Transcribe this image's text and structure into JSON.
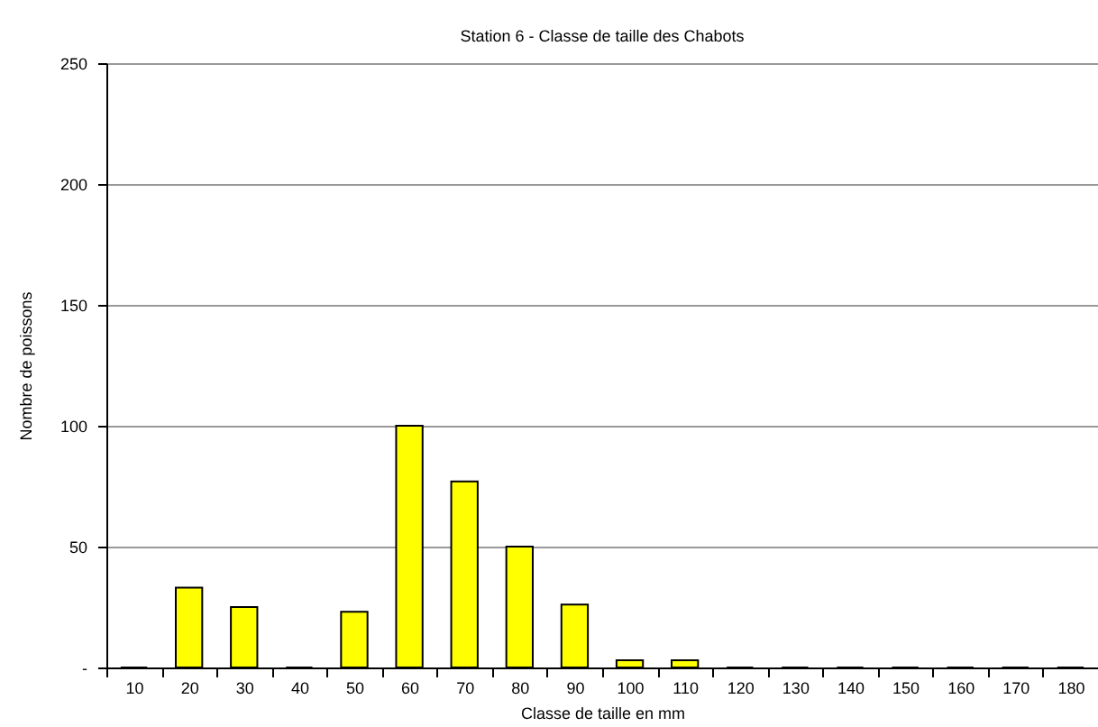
{
  "chart_data": {
    "type": "bar",
    "title": "Station 6 - Classe de taille des Chabots",
    "xlabel": "Classe de taille en mm",
    "ylabel": "Nombre de poissons",
    "categories": [
      "10",
      "20",
      "30",
      "40",
      "50",
      "60",
      "70",
      "80",
      "90",
      "100",
      "110",
      "120",
      "130",
      "140",
      "150",
      "160",
      "170",
      "180"
    ],
    "series": [
      {
        "color": "#ffff00",
        "values": [
          0,
          33,
          25,
          0,
          23,
          100,
          77,
          50,
          26,
          3,
          3,
          0,
          0,
          0,
          0,
          0,
          0,
          0
        ]
      }
    ],
    "ylim": [
      0,
      250
    ],
    "yticks": [
      {
        "value": 0,
        "label": "-"
      },
      50,
      100,
      150,
      200,
      250
    ],
    "grid": "y"
  }
}
